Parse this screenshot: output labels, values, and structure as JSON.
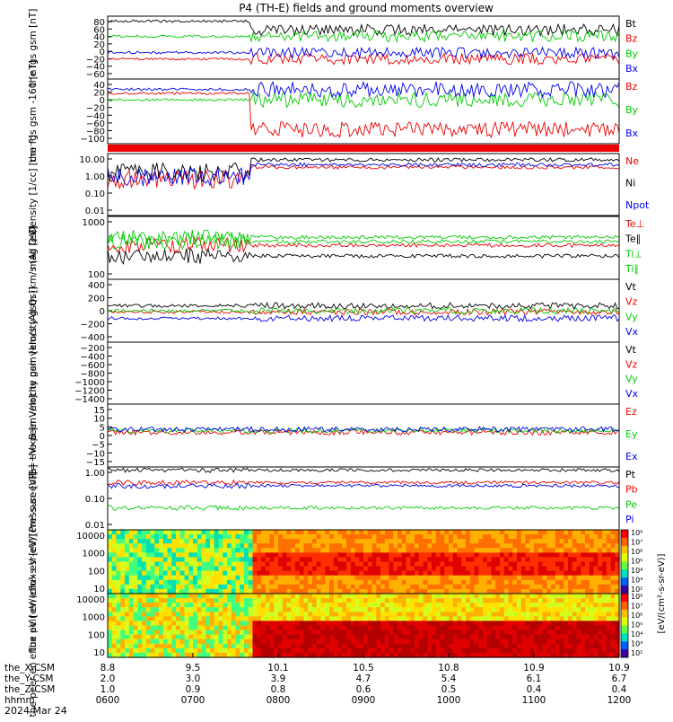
{
  "title": "P4 (TH-E) fields and ground moments overview",
  "date_label": "2024 Mar 24",
  "colors": {
    "black": "#000000",
    "red": "#ee0000",
    "green": "#00cc00",
    "blue": "#0000ee"
  },
  "ephemeris": {
    "rows": [
      {
        "name": "the_X-CSM",
        "values": [
          "8.8",
          "9.5",
          "10.1",
          "10.5",
          "10.8",
          "10.9",
          "10.9"
        ]
      },
      {
        "name": "the_Y-CSM",
        "values": [
          "2.0",
          "3.0",
          "3.9",
          "4.7",
          "5.4",
          "6.1",
          "6.7"
        ]
      },
      {
        "name": "the_Z-CSM",
        "values": [
          "1.0",
          "0.9",
          "0.8",
          "0.6",
          "0.5",
          "0.4",
          "0.4"
        ]
      },
      {
        "name": "hhmm",
        "values": [
          "0600",
          "0700",
          "0800",
          "0900",
          "1000",
          "1100",
          "1200"
        ]
      }
    ]
  },
  "colorbar": {
    "label": "[eV/(cm²-s-sr-eV)]",
    "top_ticks": [
      "10⁸",
      "10⁷",
      "10⁶",
      "10⁵",
      "10⁴",
      "10³",
      "10²"
    ],
    "bottom_ticks": [
      "10⁸",
      "10⁷",
      "10⁶",
      "10⁵",
      "10⁴",
      "10³",
      "10²"
    ]
  },
  "chart_data": [
    {
      "type": "line",
      "ylabel": "the fgs gsm [nT]",
      "ytick_labels": [
        "80",
        "60",
        "40",
        "20",
        "0",
        "−20",
        "−40",
        "−60"
      ],
      "ylim": [
        -70,
        85
      ],
      "series": [
        {
          "name": "Bt",
          "color": "black"
        },
        {
          "name": "Bz",
          "color": "red"
        },
        {
          "name": "By",
          "color": "green"
        },
        {
          "name": "Bx",
          "color": "blue"
        }
      ]
    },
    {
      "type": "line",
      "ylabel": "the fgs gsm -160 [nT]",
      "ytick_labels": [
        "40",
        "20",
        "0",
        "−20",
        "−40",
        "−60",
        "−80",
        "−100"
      ],
      "ylim": [
        -110,
        40
      ],
      "series": [
        {
          "name": "Bz",
          "color": "red"
        },
        {
          "name": "By",
          "color": "green"
        },
        {
          "name": "Bx",
          "color": "blue"
        }
      ]
    },
    {
      "type": "line",
      "ylabel": "Density [1/cc] [cm⁻³]",
      "ytick_labels": [
        "10.00",
        "1.00",
        "0.10",
        "0.01"
      ],
      "ylim": [
        0.002,
        40
      ],
      "log": true,
      "series": [
        {
          "name": "Ne",
          "color": "red"
        },
        {
          "name": "Ni",
          "color": "black"
        },
        {
          "name": "Npot",
          "color": "blue"
        }
      ]
    },
    {
      "type": "line",
      "ylabel": "mag [eV]",
      "ytick_labels": [
        "1000",
        "100"
      ],
      "ylim": [
        30,
        4000
      ],
      "log": true,
      "series": [
        {
          "name": "Te⊥",
          "color": "red"
        },
        {
          "name": "Te∥",
          "color": "black"
        },
        {
          "name": "Ti⊥",
          "color": "green"
        },
        {
          "name": "Ti∥",
          "color": "green"
        }
      ]
    },
    {
      "type": "line",
      "ylabel": "the peir velocity gsm [km/s (All Qs)]",
      "ytick_labels": [
        "400",
        "200",
        "0",
        "−200",
        "−400"
      ],
      "ylim": [
        -450,
        500
      ],
      "series": [
        {
          "name": "Vt",
          "color": "black"
        },
        {
          "name": "Vz",
          "color": "red"
        },
        {
          "name": "Vy",
          "color": "green"
        },
        {
          "name": "Vx",
          "color": "blue"
        }
      ]
    },
    {
      "type": "line",
      "ylabel": "the peer velocity gsm [km/s (All Qs)]",
      "ytick_labels": [
        "−200",
        "−400",
        "−600",
        "−800",
        "−1000",
        "−1200",
        "−1400"
      ],
      "ylim": [
        -1500,
        -100
      ],
      "series": [
        {
          "name": "Vt",
          "color": "black"
        },
        {
          "name": "Vz",
          "color": "red"
        },
        {
          "name": "Vy",
          "color": "green"
        },
        {
          "name": "Vx",
          "color": "blue"
        }
      ]
    },
    {
      "type": "line",
      "ylabel": "E=−V×B [mV/m]",
      "ytick_labels": [
        "15",
        "10",
        "5",
        "0",
        "−5",
        "−10",
        "−15"
      ],
      "ylim": [
        -16,
        16
      ],
      "series": [
        {
          "name": "Ez",
          "color": "red"
        },
        {
          "name": "Ey",
          "color": "green"
        },
        {
          "name": "Ex",
          "color": "blue"
        }
      ]
    },
    {
      "type": "line",
      "ylabel": "Pressure [nPa]",
      "ytick_labels": [
        "1.00",
        "0.10",
        "0.01"
      ],
      "ylim": [
        0.003,
        3
      ],
      "log": true,
      "series": [
        {
          "name": "Pt",
          "color": "black"
        },
        {
          "name": "Pb",
          "color": "red"
        },
        {
          "name": "Pe",
          "color": "green"
        },
        {
          "name": "Pi",
          "color": "blue"
        }
      ]
    },
    {
      "type": "heatmap",
      "ylabel": "the peir en eflux eV [eV/(cm²-s-sr-eV)]",
      "ytick_labels": [
        "10000",
        "1000",
        "100",
        "10"
      ],
      "ylim": [
        5,
        25000
      ],
      "log": true
    },
    {
      "type": "heatmap",
      "ylabel": "the peer en eflux eV [eV/(cm²-s-sr-eV)]",
      "ytick_labels": [
        "10000",
        "1000",
        "100",
        "10"
      ],
      "ylim": [
        5,
        25000
      ],
      "log": true
    }
  ]
}
